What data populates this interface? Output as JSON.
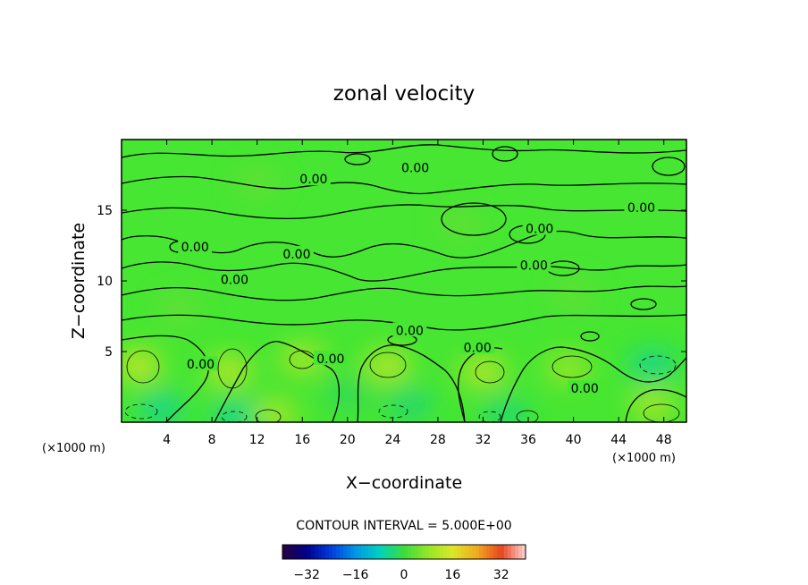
{
  "chart_data": {
    "type": "heatmap",
    "title": "zonal velocity",
    "xlabel": "X−coordinate",
    "ylabel": "Z−coordinate",
    "x_unit": "(×1000 m)",
    "y_unit": "(×1000 m)",
    "xlim": [
      0,
      50
    ],
    "ylim": [
      0,
      20
    ],
    "x_ticks": [
      4,
      8,
      12,
      16,
      20,
      24,
      28,
      32,
      36,
      40,
      44,
      48
    ],
    "y_ticks": [
      5,
      10,
      15
    ],
    "grid": false,
    "contour_interval_text": "CONTOUR INTERVAL = 5.000E+00",
    "contour_labels": [
      {
        "text": "0.00",
        "x": 26.0,
        "y": 18.0
      },
      {
        "text": "0.00",
        "x": 17.0,
        "y": 17.2
      },
      {
        "text": "0.00",
        "x": 46.0,
        "y": 15.2
      },
      {
        "text": "0.00",
        "x": 37.0,
        "y": 13.7
      },
      {
        "text": "0.00",
        "x": 6.5,
        "y": 12.4
      },
      {
        "text": "0.00",
        "x": 15.5,
        "y": 11.9
      },
      {
        "text": "0.00",
        "x": 36.5,
        "y": 11.1
      },
      {
        "text": "0.00",
        "x": 10.0,
        "y": 10.1
      },
      {
        "text": "0.00",
        "x": 25.5,
        "y": 6.5
      },
      {
        "text": "0.00",
        "x": 31.5,
        "y": 5.3
      },
      {
        "text": "0.00",
        "x": 7.0,
        "y": 4.1
      },
      {
        "text": "0.00",
        "x": 18.5,
        "y": 4.5
      },
      {
        "text": "0.00",
        "x": 41.0,
        "y": 2.4
      }
    ],
    "colorbar": {
      "min": -40,
      "max": 40,
      "ticks": [
        -32,
        -16,
        0,
        16,
        32
      ],
      "tick_labels": [
        "−32",
        "−16",
        "0",
        "16",
        "32"
      ]
    },
    "field_features": [
      {
        "x": 1.5,
        "y": 4.0,
        "v": 8
      },
      {
        "x": 9.5,
        "y": 3.6,
        "v": 7
      },
      {
        "x": 16.0,
        "y": 4.5,
        "v": 6
      },
      {
        "x": 23.5,
        "y": 4.0,
        "v": 7
      },
      {
        "x": 32.0,
        "y": 3.6,
        "v": 7
      },
      {
        "x": 39.5,
        "y": 3.8,
        "v": 5
      },
      {
        "x": 47.0,
        "y": 1.2,
        "v": 6
      },
      {
        "x": 13.5,
        "y": 0.5,
        "v": 6
      },
      {
        "x": 3.5,
        "y": 1.0,
        "v": -3
      },
      {
        "x": 10.0,
        "y": 0.4,
        "v": -3
      },
      {
        "x": 25.5,
        "y": 1.3,
        "v": -2
      },
      {
        "x": 34.0,
        "y": 0.6,
        "v": -2
      },
      {
        "x": 47.0,
        "y": 4.0,
        "v": -3
      },
      {
        "x": 20.0,
        "y": 2.0,
        "v": -1
      },
      {
        "x": 12.0,
        "y": 17.0,
        "v": 2
      },
      {
        "x": 30.0,
        "y": 14.0,
        "v": 2
      },
      {
        "x": 40.0,
        "y": 9.0,
        "v": 2
      },
      {
        "x": 5.0,
        "y": 8.0,
        "v": 2
      }
    ]
  }
}
